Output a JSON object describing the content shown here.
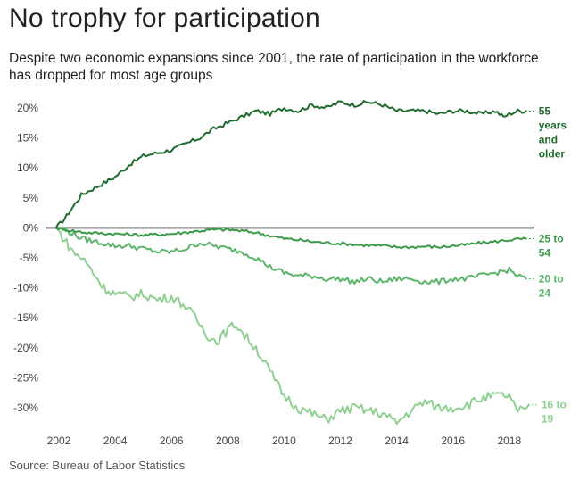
{
  "title": "No trophy for participation",
  "subtitle": "Despite two economic expansions since 2001, the rate of participation in the workforce has dropped for most age groups",
  "source": "Source: Bureau of Labor Statistics",
  "chart_data": {
    "type": "line",
    "title": "No trophy for participation",
    "xlabel": "",
    "ylabel": "",
    "xlim": [
      2001.7,
      2018.9
    ],
    "ylim": [
      -33,
      21
    ],
    "grid": false,
    "zero_line": true,
    "x_ticks": [
      2002,
      2004,
      2006,
      2008,
      2010,
      2012,
      2014,
      2016,
      2018
    ],
    "x_tick_labels": [
      "2002",
      "2004",
      "2006",
      "2008",
      "2010",
      "2012",
      "2014",
      "2016",
      "2018"
    ],
    "y_ticks": [
      20,
      15,
      10,
      5,
      0,
      -5,
      -10,
      -15,
      -20,
      -25,
      -30
    ],
    "y_tick_labels": [
      "20%",
      "15%",
      "10%",
      "5%",
      "0%",
      "-5%",
      "-10%",
      "-15%",
      "-20%",
      "-25%",
      "-30%"
    ],
    "series": [
      {
        "name": "55 years and older",
        "label_lines": [
          "55",
          "years",
          "and",
          "older"
        ],
        "color": "#1f6b2e",
        "x": [
          2001.9,
          2002.2,
          2002.5,
          2002.8,
          2003.2,
          2003.6,
          2004.0,
          2004.5,
          2005.0,
          2005.5,
          2006.0,
          2006.5,
          2007.0,
          2007.5,
          2008.0,
          2008.5,
          2009.0,
          2009.5,
          2010.0,
          2010.5,
          2011.0,
          2011.5,
          2012.0,
          2012.5,
          2013.0,
          2013.5,
          2014.0,
          2014.5,
          2015.0,
          2015.5,
          2016.0,
          2016.5,
          2017.0,
          2017.5,
          2017.8,
          2018.0,
          2018.3,
          2018.6
        ],
        "values": [
          0.0,
          1.5,
          3.5,
          5.5,
          6.5,
          7.5,
          8.5,
          10.5,
          12.0,
          12.5,
          13.0,
          14.0,
          15.0,
          16.5,
          17.5,
          18.5,
          19.5,
          19.0,
          20.0,
          19.5,
          20.5,
          20.0,
          21.0,
          20.5,
          21.0,
          20.5,
          19.5,
          19.5,
          19.5,
          19.0,
          19.5,
          19.5,
          19.0,
          19.5,
          18.5,
          19.0,
          19.5,
          19.5
        ]
      },
      {
        "name": "25 to 54",
        "label_lines": [
          "25 to",
          "54"
        ],
        "color": "#3a9a4a",
        "x": [
          2001.9,
          2002.5,
          2003.0,
          2004.0,
          2005.0,
          2006.0,
          2007.0,
          2007.5,
          2008.0,
          2008.5,
          2009.0,
          2009.5,
          2010.0,
          2010.5,
          2011.0,
          2011.5,
          2012.0,
          2012.5,
          2013.0,
          2013.5,
          2014.0,
          2014.5,
          2015.0,
          2015.5,
          2016.0,
          2016.5,
          2017.0,
          2017.5,
          2018.0,
          2018.6
        ],
        "values": [
          0.0,
          -0.5,
          -0.8,
          -1.0,
          -1.2,
          -1.0,
          -0.5,
          -0.3,
          -0.3,
          -0.5,
          -0.8,
          -1.3,
          -1.8,
          -2.0,
          -2.3,
          -2.5,
          -2.6,
          -2.8,
          -2.9,
          -3.0,
          -3.2,
          -3.2,
          -3.1,
          -3.2,
          -3.0,
          -2.8,
          -2.5,
          -2.3,
          -2.0,
          -1.8
        ]
      },
      {
        "name": "20 to 24",
        "label_lines": [
          "20 to",
          "24"
        ],
        "color": "#5bb56a",
        "x": [
          2001.9,
          2002.3,
          2002.7,
          2003.0,
          2003.5,
          2004.0,
          2004.5,
          2005.0,
          2005.5,
          2006.0,
          2006.5,
          2007.0,
          2007.5,
          2008.0,
          2008.5,
          2009.0,
          2009.5,
          2010.0,
          2010.5,
          2011.0,
          2011.5,
          2012.0,
          2012.5,
          2013.0,
          2013.5,
          2014.0,
          2014.5,
          2015.0,
          2015.5,
          2016.0,
          2016.5,
          2017.0,
          2017.5,
          2018.0,
          2018.3,
          2018.6
        ],
        "values": [
          0.0,
          -0.5,
          -1.5,
          -2.0,
          -2.5,
          -3.0,
          -3.0,
          -3.5,
          -4.0,
          -4.0,
          -3.5,
          -2.5,
          -3.0,
          -3.5,
          -4.0,
          -5.0,
          -6.5,
          -7.5,
          -8.0,
          -8.0,
          -8.5,
          -8.5,
          -9.0,
          -8.5,
          -9.0,
          -8.5,
          -8.5,
          -9.0,
          -9.0,
          -8.5,
          -8.5,
          -8.0,
          -7.5,
          -7.0,
          -8.0,
          -8.5
        ]
      },
      {
        "name": "16 to 19",
        "label_lines": [
          "16 to",
          "19"
        ],
        "color": "#8fd092",
        "x": [
          2001.9,
          2002.2,
          2002.5,
          2002.8,
          2003.0,
          2003.3,
          2003.6,
          2004.0,
          2004.5,
          2005.0,
          2005.5,
          2006.0,
          2006.5,
          2007.0,
          2007.3,
          2007.6,
          2008.0,
          2008.3,
          2008.6,
          2009.0,
          2009.5,
          2010.0,
          2010.5,
          2011.0,
          2011.5,
          2012.0,
          2012.5,
          2013.0,
          2013.5,
          2014.0,
          2014.5,
          2015.0,
          2015.5,
          2016.0,
          2016.5,
          2017.0,
          2017.5,
          2018.0,
          2018.3,
          2018.5,
          2018.7
        ],
        "values": [
          0.0,
          -2.0,
          -4.0,
          -5.0,
          -6.0,
          -8.0,
          -10.0,
          -11.0,
          -11.5,
          -11.0,
          -12.0,
          -11.5,
          -13.0,
          -16.0,
          -18.0,
          -19.0,
          -17.0,
          -16.0,
          -18.0,
          -20.0,
          -24.0,
          -28.0,
          -30.0,
          -31.0,
          -32.0,
          -30.5,
          -30.0,
          -30.5,
          -31.0,
          -32.5,
          -30.5,
          -29.0,
          -30.0,
          -30.0,
          -29.5,
          -28.5,
          -28.0,
          -28.0,
          -31.0,
          -30.0,
          -29.5
        ]
      }
    ]
  }
}
